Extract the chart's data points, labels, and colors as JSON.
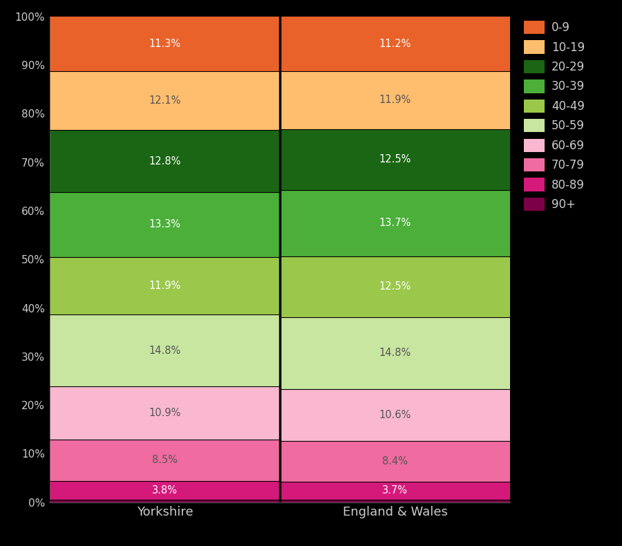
{
  "categories": [
    "Yorkshire",
    "England & Wales"
  ],
  "segment_labels_bottom_to_top": [
    "90+",
    "80-89",
    "70-79",
    "60-69",
    "50-59",
    "40-49",
    "30-39",
    "20-29",
    "10-19",
    "0-9"
  ],
  "yorkshire_vals": [
    0.6,
    3.8,
    8.5,
    10.9,
    14.8,
    11.9,
    13.3,
    12.8,
    12.1,
    11.3
  ],
  "ew_vals": [
    0.6,
    3.7,
    8.4,
    10.6,
    14.8,
    12.5,
    13.7,
    12.5,
    11.9,
    11.2
  ],
  "yorkshire_labels": [
    "",
    "3.8%",
    "8.5%",
    "10.9%",
    "14.8%",
    "11.9%",
    "13.3%",
    "12.8%",
    "12.1%",
    "11.3%"
  ],
  "ew_labels": [
    "",
    "3.7%",
    "8.4%",
    "10.6%",
    "14.8%",
    "12.5%",
    "13.7%",
    "12.5%",
    "11.9%",
    "11.2%"
  ],
  "segment_colors_bottom_to_top": [
    "#7B0045",
    "#D5197B",
    "#F06BA0",
    "#F9B8D0",
    "#C8E6A0",
    "#9BC84A",
    "#4BAF3A",
    "#1A6614",
    "#FFBE6E",
    "#E8622A"
  ],
  "text_colors_bottom_to_top": [
    "#ffffff",
    "#ffffff",
    "#555555",
    "#555555",
    "#555555",
    "#ffffff",
    "#ffffff",
    "#ffffff",
    "#555555",
    "#ffffff"
  ],
  "legend_labels": [
    "0-9",
    "10-19",
    "20-29",
    "30-39",
    "40-49",
    "50-59",
    "60-69",
    "70-79",
    "80-89",
    "90+"
  ],
  "legend_colors": [
    "#E8622A",
    "#FFBE6E",
    "#1A6614",
    "#4BAF3A",
    "#9BC84A",
    "#C8E6A0",
    "#F9B8D0",
    "#F06BA0",
    "#D5197B",
    "#7B0045"
  ],
  "background_color": "#000000",
  "axis_text_color": "#cccccc",
  "divider_color": "#000000",
  "grid_color": "#555555"
}
